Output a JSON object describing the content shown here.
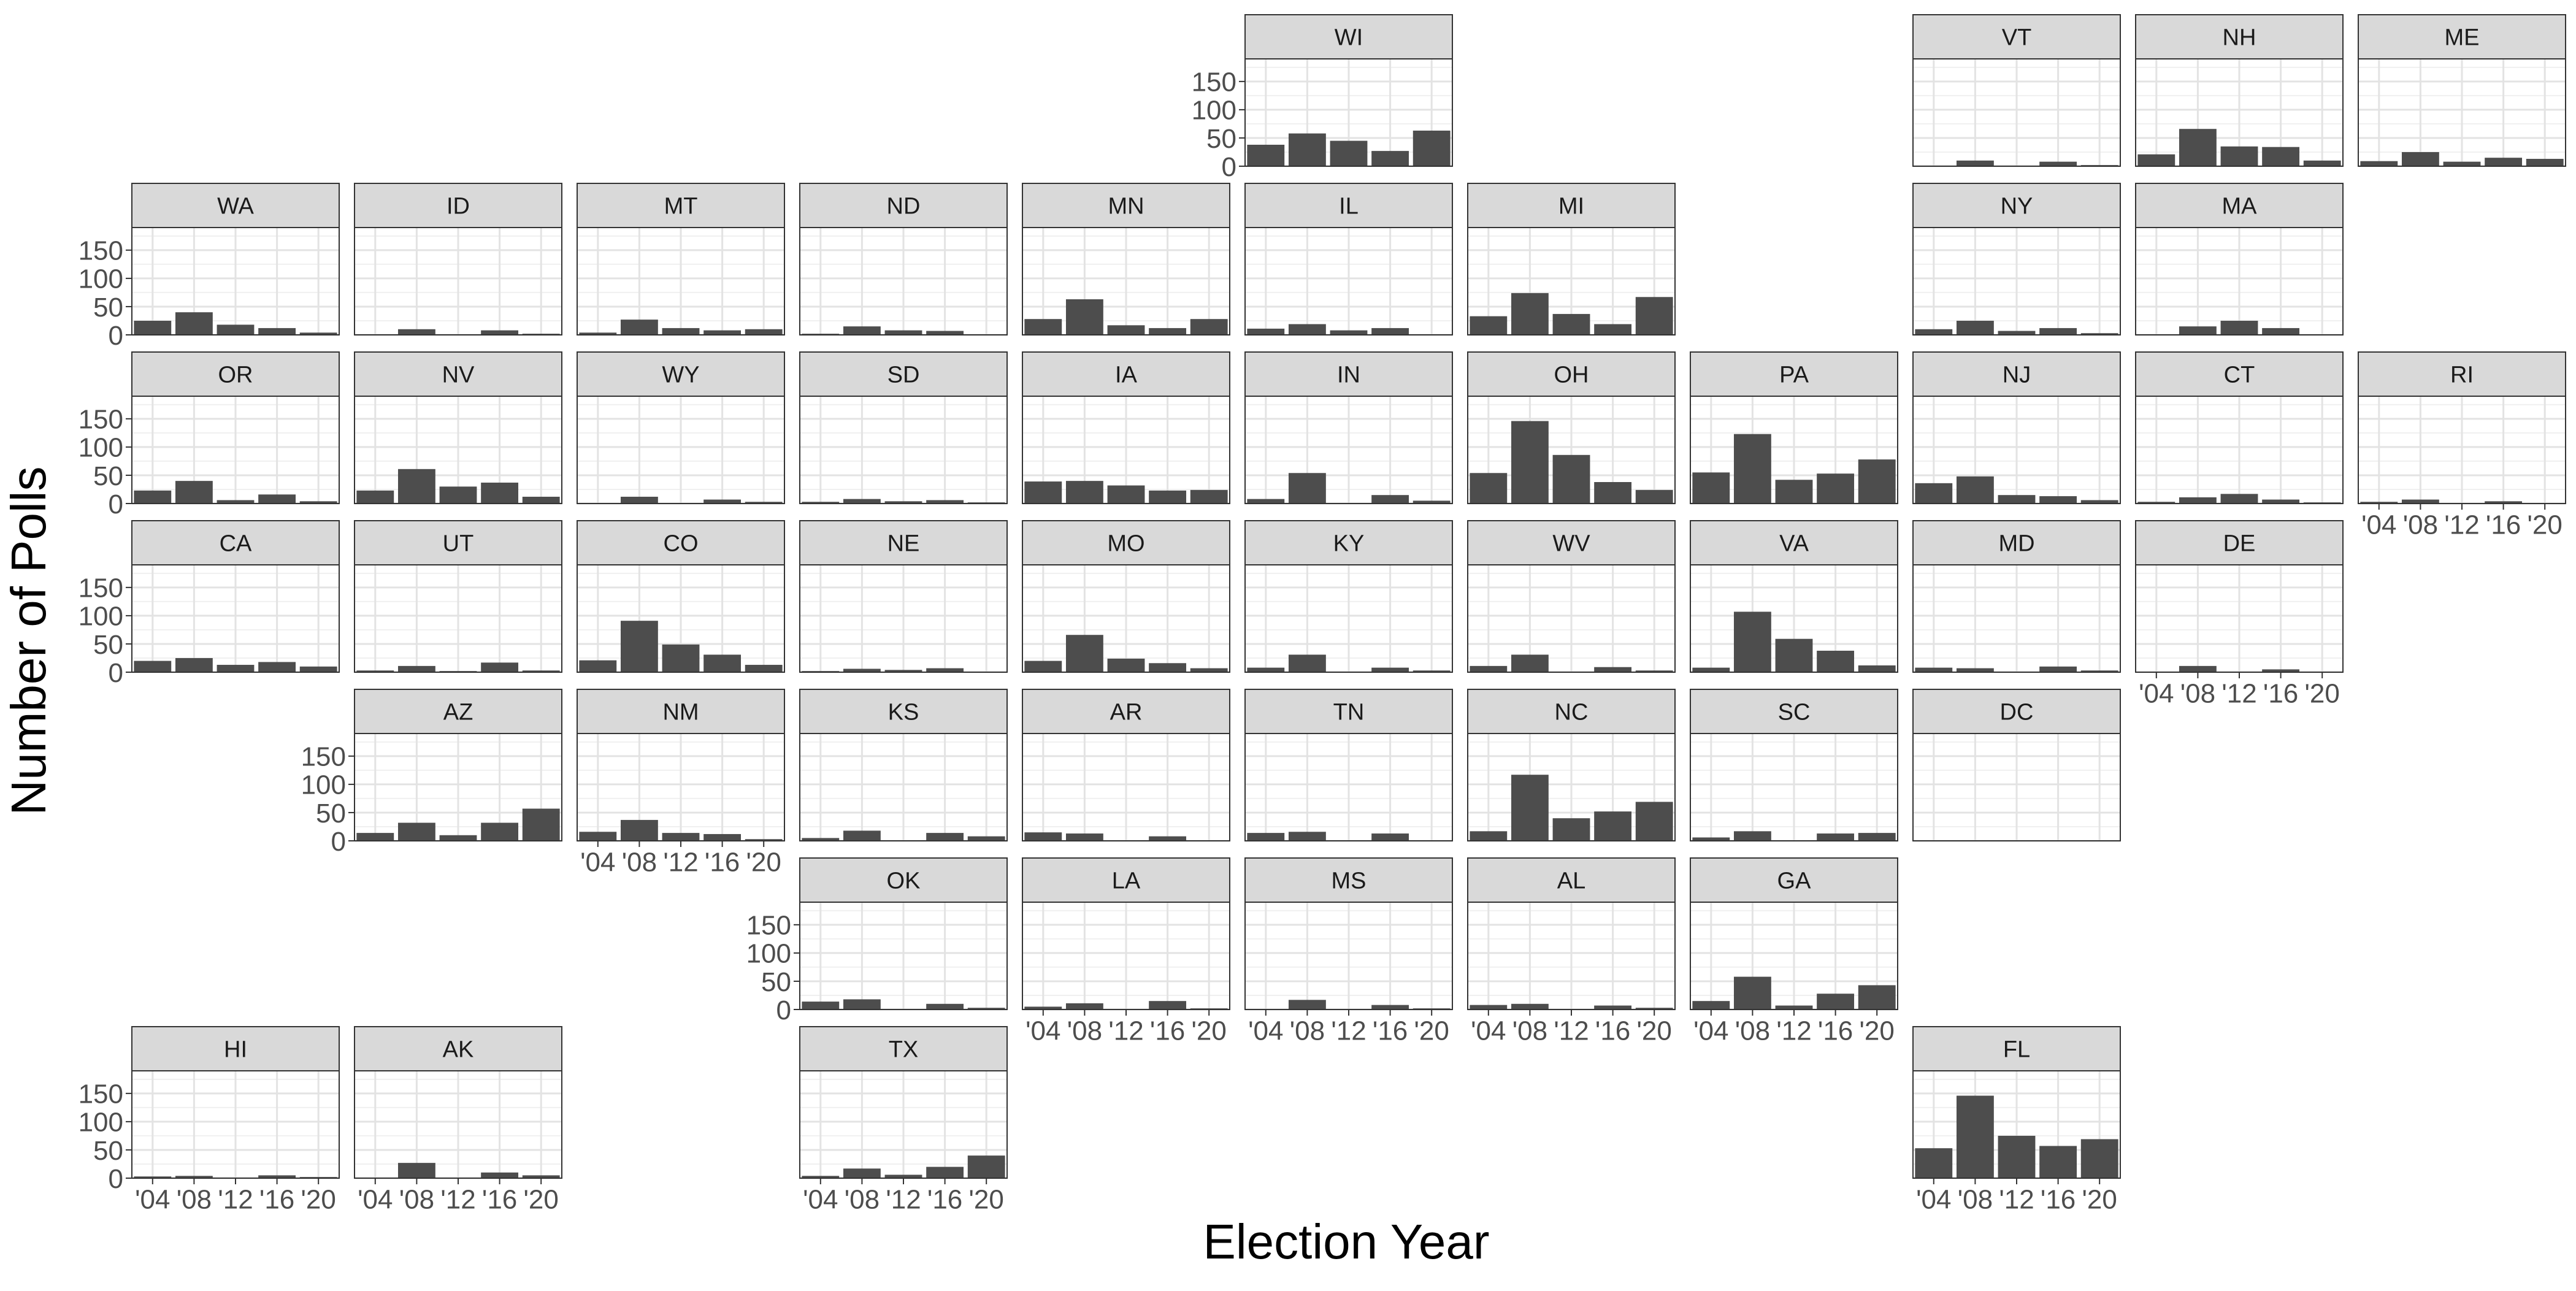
{
  "chart_data": {
    "type": "bar",
    "layout": "state-grid facets",
    "xlabel": "Election Year",
    "ylabel": "Number of Polls",
    "x_categories": [
      "2004",
      "2008",
      "2012",
      "2016",
      "2020"
    ],
    "x_tick_labels": [
      "'04",
      "'08",
      "'12",
      "'16",
      "'20"
    ],
    "y_ticks": [
      0,
      50,
      100,
      150
    ],
    "ylim": [
      0,
      190
    ],
    "grid": true,
    "bar_color": "#4d4d4d",
    "strip_color": "#d9d9d9",
    "facets": [
      {
        "state": "WI",
        "row": 0,
        "col": 5,
        "values": [
          38,
          58,
          45,
          27,
          63
        ]
      },
      {
        "state": "VT",
        "row": 0,
        "col": 8,
        "values": [
          0,
          10,
          0,
          8,
          2
        ]
      },
      {
        "state": "NH",
        "row": 0,
        "col": 9,
        "values": [
          21,
          66,
          35,
          34,
          10
        ]
      },
      {
        "state": "ME",
        "row": 0,
        "col": 10,
        "values": [
          9,
          25,
          8,
          15,
          13
        ]
      },
      {
        "state": "WA",
        "row": 1,
        "col": 0,
        "values": [
          25,
          40,
          18,
          12,
          4
        ]
      },
      {
        "state": "ID",
        "row": 1,
        "col": 1,
        "values": [
          0,
          10,
          0,
          8,
          2
        ]
      },
      {
        "state": "MT",
        "row": 1,
        "col": 2,
        "values": [
          4,
          27,
          12,
          8,
          10
        ]
      },
      {
        "state": "ND",
        "row": 1,
        "col": 3,
        "values": [
          2,
          15,
          8,
          7,
          1
        ]
      },
      {
        "state": "MN",
        "row": 1,
        "col": 4,
        "values": [
          28,
          63,
          17,
          12,
          28
        ]
      },
      {
        "state": "IL",
        "row": 1,
        "col": 5,
        "values": [
          11,
          19,
          8,
          12,
          1
        ]
      },
      {
        "state": "MI",
        "row": 1,
        "col": 6,
        "values": [
          33,
          74,
          37,
          19,
          67
        ]
      },
      {
        "state": "NY",
        "row": 1,
        "col": 8,
        "values": [
          10,
          25,
          7,
          12,
          3
        ]
      },
      {
        "state": "MA",
        "row": 1,
        "col": 9,
        "values": [
          0,
          15,
          25,
          12,
          1
        ]
      },
      {
        "state": "OR",
        "row": 2,
        "col": 0,
        "values": [
          23,
          40,
          6,
          16,
          4
        ]
      },
      {
        "state": "NV",
        "row": 2,
        "col": 1,
        "values": [
          23,
          61,
          30,
          37,
          12
        ]
      },
      {
        "state": "WY",
        "row": 2,
        "col": 2,
        "values": [
          0,
          12,
          0,
          7,
          3
        ]
      },
      {
        "state": "SD",
        "row": 2,
        "col": 3,
        "values": [
          3,
          8,
          4,
          6,
          2
        ]
      },
      {
        "state": "IA",
        "row": 2,
        "col": 4,
        "values": [
          39,
          40,
          32,
          23,
          24
        ]
      },
      {
        "state": "IN",
        "row": 2,
        "col": 5,
        "values": [
          8,
          54,
          0,
          15,
          5
        ]
      },
      {
        "state": "OH",
        "row": 2,
        "col": 6,
        "values": [
          54,
          146,
          86,
          38,
          24
        ]
      },
      {
        "state": "PA",
        "row": 2,
        "col": 7,
        "values": [
          55,
          123,
          42,
          53,
          78
        ]
      },
      {
        "state": "NJ",
        "row": 2,
        "col": 8,
        "values": [
          36,
          48,
          15,
          13,
          6
        ]
      },
      {
        "state": "CT",
        "row": 2,
        "col": 9,
        "values": [
          3,
          11,
          17,
          7,
          2
        ]
      },
      {
        "state": "RI",
        "row": 2,
        "col": 10,
        "values": [
          3,
          7,
          0,
          4,
          0
        ]
      },
      {
        "state": "CA",
        "row": 3,
        "col": 0,
        "values": [
          20,
          25,
          13,
          18,
          10
        ]
      },
      {
        "state": "UT",
        "row": 3,
        "col": 1,
        "values": [
          3,
          11,
          2,
          17,
          3
        ]
      },
      {
        "state": "CO",
        "row": 3,
        "col": 2,
        "values": [
          21,
          91,
          49,
          31,
          13
        ]
      },
      {
        "state": "NE",
        "row": 3,
        "col": 3,
        "values": [
          2,
          6,
          4,
          7,
          0
        ]
      },
      {
        "state": "MO",
        "row": 3,
        "col": 4,
        "values": [
          20,
          66,
          24,
          16,
          7
        ]
      },
      {
        "state": "KY",
        "row": 3,
        "col": 5,
        "values": [
          8,
          31,
          0,
          8,
          3
        ]
      },
      {
        "state": "WV",
        "row": 3,
        "col": 6,
        "values": [
          11,
          31,
          0,
          9,
          3
        ]
      },
      {
        "state": "VA",
        "row": 3,
        "col": 7,
        "values": [
          8,
          107,
          59,
          38,
          12
        ]
      },
      {
        "state": "MD",
        "row": 3,
        "col": 8,
        "values": [
          8,
          7,
          0,
          10,
          3
        ]
      },
      {
        "state": "DE",
        "row": 3,
        "col": 9,
        "values": [
          0,
          11,
          0,
          5,
          1
        ]
      },
      {
        "state": "AZ",
        "row": 4,
        "col": 1,
        "values": [
          14,
          32,
          10,
          32,
          57
        ]
      },
      {
        "state": "NM",
        "row": 4,
        "col": 2,
        "values": [
          16,
          37,
          14,
          12,
          3
        ]
      },
      {
        "state": "KS",
        "row": 4,
        "col": 3,
        "values": [
          5,
          18,
          0,
          14,
          8
        ]
      },
      {
        "state": "AR",
        "row": 4,
        "col": 4,
        "values": [
          15,
          13,
          0,
          8,
          1
        ]
      },
      {
        "state": "TN",
        "row": 4,
        "col": 5,
        "values": [
          14,
          16,
          0,
          13,
          0
        ]
      },
      {
        "state": "NC",
        "row": 4,
        "col": 6,
        "values": [
          17,
          117,
          40,
          52,
          69
        ]
      },
      {
        "state": "SC",
        "row": 4,
        "col": 7,
        "values": [
          6,
          17,
          0,
          13,
          14
        ]
      },
      {
        "state": "DC",
        "row": 4,
        "col": 8,
        "values": [
          0,
          0,
          0,
          0,
          0
        ]
      },
      {
        "state": "OK",
        "row": 5,
        "col": 3,
        "values": [
          14,
          18,
          0,
          10,
          3
        ]
      },
      {
        "state": "LA",
        "row": 5,
        "col": 4,
        "values": [
          5,
          11,
          0,
          15,
          2
        ]
      },
      {
        "state": "MS",
        "row": 5,
        "col": 5,
        "values": [
          0,
          17,
          0,
          8,
          2
        ]
      },
      {
        "state": "AL",
        "row": 5,
        "col": 6,
        "values": [
          8,
          10,
          0,
          7,
          3
        ]
      },
      {
        "state": "GA",
        "row": 5,
        "col": 7,
        "values": [
          15,
          58,
          7,
          28,
          43
        ]
      },
      {
        "state": "HI",
        "row": 6,
        "col": 0,
        "values": [
          3,
          4,
          0,
          5,
          2
        ]
      },
      {
        "state": "AK",
        "row": 6,
        "col": 1,
        "values": [
          0,
          27,
          0,
          10,
          5
        ]
      },
      {
        "state": "TX",
        "row": 6,
        "col": 3,
        "values": [
          4,
          17,
          6,
          20,
          40
        ]
      },
      {
        "state": "FL",
        "row": 6,
        "col": 8,
        "values": [
          53,
          146,
          75,
          57,
          69
        ]
      }
    ],
    "y_axis_facets": [
      "WI",
      "WA",
      "OR",
      "CA",
      "AZ",
      "OK",
      "HI"
    ],
    "x_axis_facets": [
      "RI",
      "DE",
      "NM",
      "LA",
      "MS",
      "AL",
      "GA",
      "HI",
      "AK",
      "TX",
      "FL"
    ]
  }
}
